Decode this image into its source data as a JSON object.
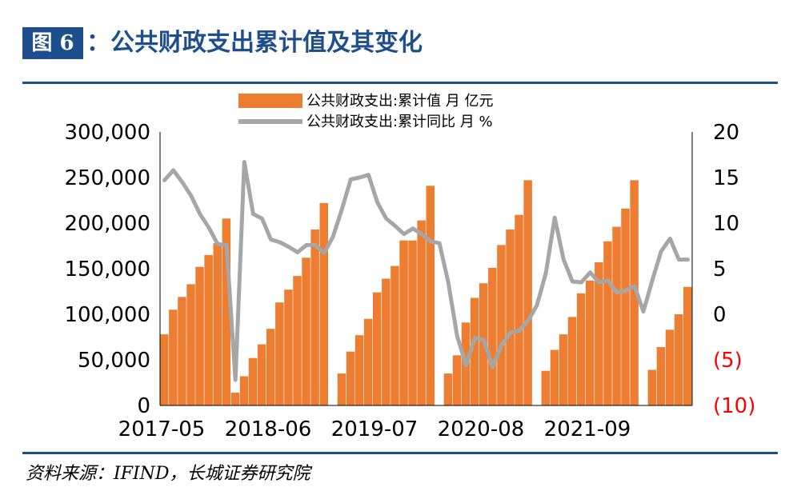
{
  "header": {
    "figure_label": "图 6",
    "title": "公共财政支出累计值及其变化"
  },
  "source": "资料来源：IFIND，长城证券研究院",
  "colors": {
    "bar": "#ed7d31",
    "line": "#a6a6a6",
    "accent": "#1f4e8c",
    "negative": "#ff0000"
  },
  "chart_data": {
    "type": "bar",
    "legend_position": "top",
    "series": [
      {
        "name": "公共财政支出:累计值 月 亿元",
        "kind": "bar",
        "axis": "left",
        "values": [
          78000,
          105000,
          119000,
          133000,
          152000,
          165000,
          178000,
          205000,
          14000,
          32000,
          52000,
          67000,
          84000,
          113000,
          127000,
          142000,
          162000,
          193000,
          222000,
          0,
          35000,
          59000,
          77000,
          95000,
          124000,
          139000,
          153000,
          181000,
          181000,
          203000,
          241000,
          0,
          35000,
          55000,
          91000,
          118000,
          134000,
          151000,
          176000,
          193000,
          209000,
          247000,
          0,
          38000,
          61000,
          78000,
          97000,
          123000,
          137000,
          157000,
          180000,
          196000,
          216000,
          247000,
          0,
          39000,
          64000,
          83000,
          100000,
          130000
        ]
      },
      {
        "name": "公共财政支出:累计同比 月 %",
        "kind": "line",
        "axis": "right",
        "values": [
          14.7,
          15.8,
          14.5,
          13,
          11,
          9.5,
          7.7,
          7.6,
          -7.2,
          16.7,
          11,
          10.5,
          8.2,
          7.9,
          7.4,
          6.8,
          7.6,
          7.6,
          6.7,
          8.5,
          11.5,
          14.8,
          15,
          15.3,
          12.3,
          10.5,
          9.7,
          8.8,
          9.4,
          8.8,
          8,
          7.8,
          3.5,
          -2.4,
          -5.6,
          -2.6,
          -2.8,
          -5.8,
          -3.4,
          -2,
          -1.8,
          -0.7,
          1,
          4.5,
          10.6,
          6,
          3.6,
          3.5,
          4.6,
          3.5,
          3.7,
          2.4,
          2.6,
          3.1,
          0.3,
          3.7,
          6.9,
          8.3,
          6,
          6
        ]
      }
    ],
    "x": {
      "tick_labels": [
        "2017-05",
        "2018-06",
        "2019-07",
        "2020-08",
        "2021-09"
      ],
      "tick_indices": [
        0,
        12,
        24,
        36,
        48
      ]
    },
    "y_left": {
      "min": 0,
      "max": 300000,
      "tick_labels": [
        "0",
        "50,000",
        "100,000",
        "150,000",
        "200,000",
        "250,000",
        "300,000"
      ]
    },
    "y_right": {
      "min": -10,
      "max": 20,
      "tick_labels": [
        "(10)",
        "(5)",
        "0",
        "5",
        "10",
        "15",
        "20"
      ]
    }
  }
}
